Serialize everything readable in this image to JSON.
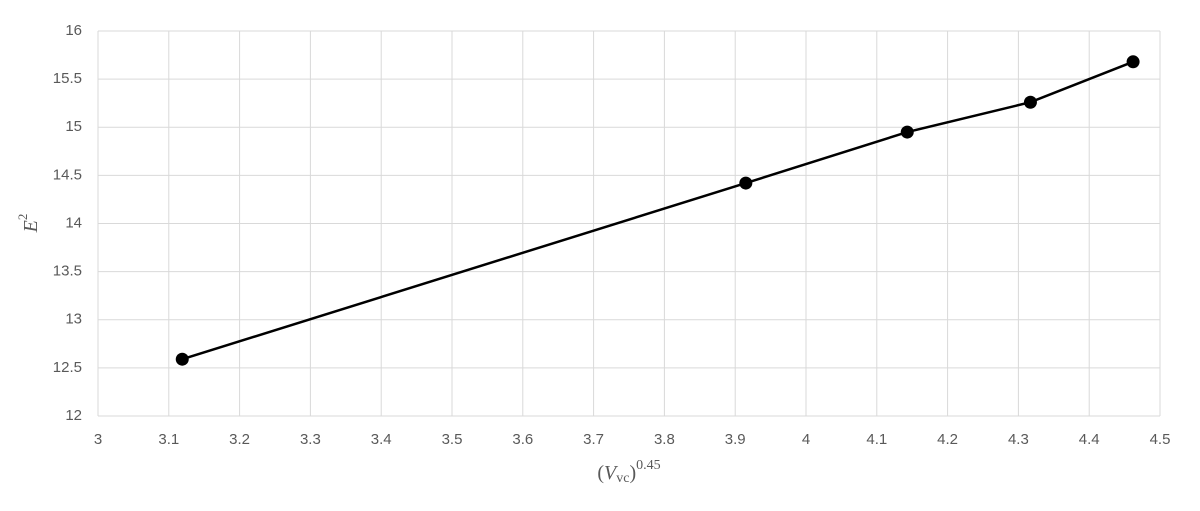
{
  "chart_data": {
    "type": "line",
    "x_label": {
      "open": "(",
      "var": "V",
      "sub": "vc",
      "close": ")",
      "exp": "0.45"
    },
    "y_label": {
      "var": "E",
      "exp": "2"
    },
    "x": [
      3.119,
      3.915,
      4.143,
      4.317,
      4.462
    ],
    "series": [
      {
        "color": "#000000",
        "values": [
          12.59,
          14.42,
          14.95,
          15.26,
          15.68
        ]
      }
    ],
    "xlim": [
      3,
      4.5
    ],
    "xticks": [
      3,
      3.1,
      3.2,
      3.3,
      3.4,
      3.5,
      3.6,
      3.7,
      3.8,
      3.9,
      4,
      4.1,
      4.2,
      4.3,
      4.4,
      4.5
    ],
    "ylim": [
      12,
      16
    ],
    "yticks": [
      12,
      12.5,
      13,
      13.5,
      14,
      14.5,
      15,
      15.5,
      16
    ],
    "grid": true,
    "markers": true
  }
}
